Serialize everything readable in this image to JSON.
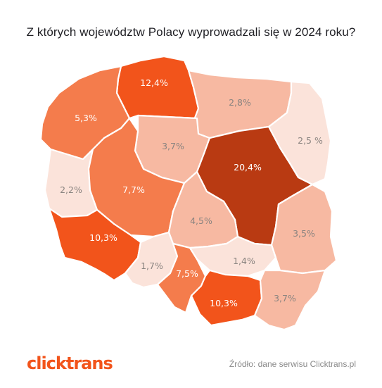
{
  "title": "Z których województw Polacy wyprowadzali się  w 2024 roku?",
  "colors": {
    "very_light": "#fbe3da",
    "light": "#f7b9a2",
    "medium": "#f47c4c",
    "strong": "#f2541b",
    "darkest": "#b93a12"
  },
  "regions": [
    {
      "id": "pomorskie",
      "label": "12,4%",
      "tone": "strong"
    },
    {
      "id": "zachodniopomorskie",
      "label": "5,3%",
      "tone": "medium"
    },
    {
      "id": "warminsko-mazurskie",
      "label": "2,8%",
      "tone": "light"
    },
    {
      "id": "podlaskie",
      "label": "2,5 %",
      "tone": "very_light"
    },
    {
      "id": "kujawsko-pomorskie",
      "label": "3,7%",
      "tone": "light"
    },
    {
      "id": "mazowieckie",
      "label": "20,4%",
      "tone": "darkest"
    },
    {
      "id": "lubuskie",
      "label": "2,2%",
      "tone": "very_light"
    },
    {
      "id": "wielkopolskie",
      "label": "7,7%",
      "tone": "medium"
    },
    {
      "id": "lodzkie",
      "label": "4,5%",
      "tone": "light"
    },
    {
      "id": "lubelskie",
      "label": "3,5%",
      "tone": "light"
    },
    {
      "id": "dolnoslaskie",
      "label": "10,3%",
      "tone": "strong"
    },
    {
      "id": "opolskie",
      "label": "1,7%",
      "tone": "very_light"
    },
    {
      "id": "slaskie",
      "label": "7,5%",
      "tone": "medium"
    },
    {
      "id": "swietokrzyskie",
      "label": "1,4%",
      "tone": "very_light"
    },
    {
      "id": "malopolskie",
      "label": "10,3%",
      "tone": "strong"
    },
    {
      "id": "podkarpackie",
      "label": "3,7%",
      "tone": "light"
    }
  ],
  "logo": "clicktrans",
  "source": "Źródło: dane serwisu Clicktrans.pl"
}
